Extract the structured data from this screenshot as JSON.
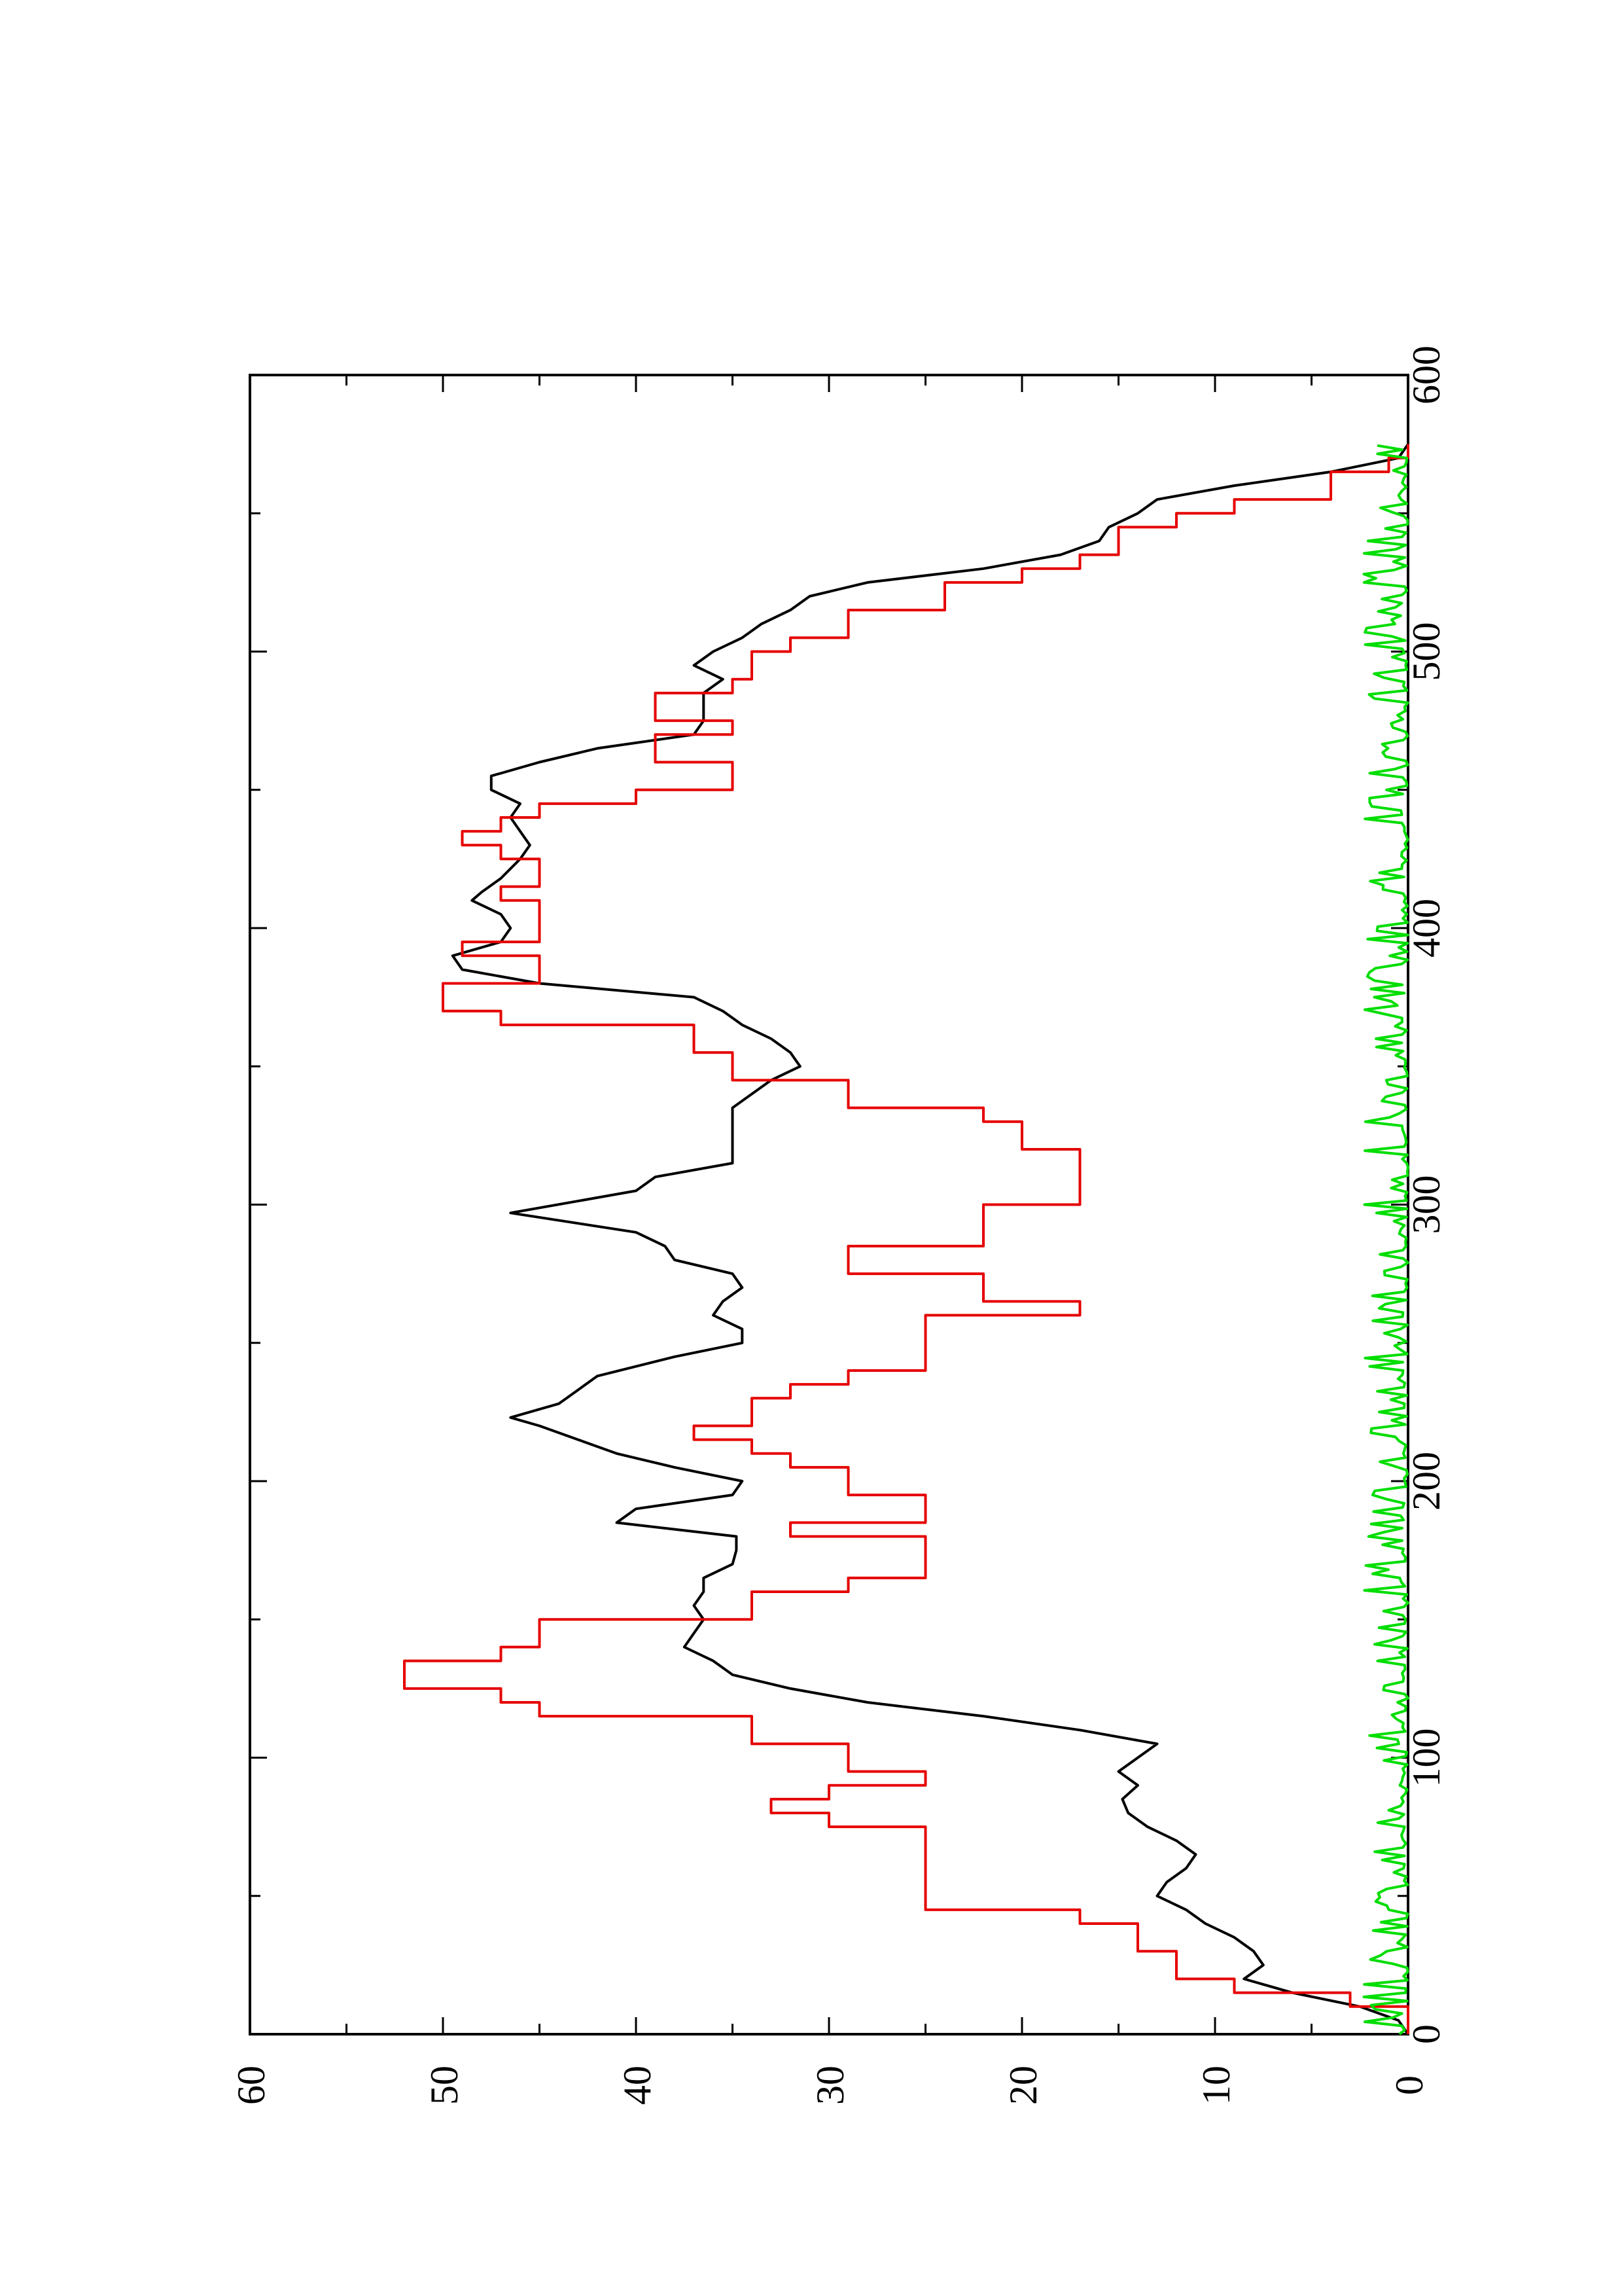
{
  "chart_data": {
    "type": "line",
    "orientation": "rotated-90-ccw",
    "title": "",
    "xlabel": "",
    "ylabel": "",
    "xlim": [
      0,
      600
    ],
    "ylim": [
      0,
      60
    ],
    "x_ticks": [
      "0",
      "100",
      "200",
      "300",
      "400",
      "500",
      "600"
    ],
    "y_ticks": [
      "0",
      "10",
      "20",
      "30",
      "40",
      "50",
      "60"
    ],
    "grid": false,
    "legend": "none",
    "series": [
      {
        "color": "#000000",
        "style": "line",
        "points": [
          [
            0,
            0
          ],
          [
            5,
            0.5
          ],
          [
            10,
            2.5
          ],
          [
            15,
            6
          ],
          [
            18,
            7.5
          ],
          [
            20,
            8.5
          ],
          [
            25,
            7.5
          ],
          [
            30,
            8
          ],
          [
            35,
            9
          ],
          [
            40,
            10.5
          ],
          [
            45,
            11.5
          ],
          [
            50,
            13
          ],
          [
            55,
            12.5
          ],
          [
            60,
            11.5
          ],
          [
            65,
            11
          ],
          [
            70,
            12
          ],
          [
            75,
            13.5
          ],
          [
            80,
            14.5
          ],
          [
            85,
            14.8
          ],
          [
            90,
            14
          ],
          [
            95,
            15
          ],
          [
            100,
            14
          ],
          [
            105,
            13
          ],
          [
            110,
            17
          ],
          [
            115,
            22
          ],
          [
            120,
            28
          ],
          [
            125,
            32
          ],
          [
            130,
            35
          ],
          [
            135,
            36
          ],
          [
            140,
            37.5
          ],
          [
            145,
            37
          ],
          [
            150,
            36.5
          ],
          [
            155,
            37
          ],
          [
            160,
            36.5
          ],
          [
            165,
            36.5
          ],
          [
            170,
            35
          ],
          [
            175,
            34.8
          ],
          [
            180,
            34.8
          ],
          [
            185,
            41
          ],
          [
            190,
            40
          ],
          [
            195,
            35
          ],
          [
            200,
            34.5
          ],
          [
            205,
            38
          ],
          [
            210,
            41
          ],
          [
            215,
            43
          ],
          [
            220,
            45
          ],
          [
            223,
            46.5
          ],
          [
            228,
            44
          ],
          [
            233,
            43
          ],
          [
            238,
            42
          ],
          [
            245,
            38
          ],
          [
            250,
            34.5
          ],
          [
            255,
            34.5
          ],
          [
            260,
            36
          ],
          [
            265,
            35.5
          ],
          [
            270,
            34.5
          ],
          [
            275,
            35
          ],
          [
            280,
            38
          ],
          [
            285,
            38.5
          ],
          [
            290,
            40
          ],
          [
            297,
            46.5
          ],
          [
            305,
            40
          ],
          [
            310,
            39
          ],
          [
            315,
            35
          ],
          [
            320,
            35
          ],
          [
            325,
            35
          ],
          [
            330,
            35
          ],
          [
            335,
            35
          ],
          [
            340,
            34
          ],
          [
            345,
            33
          ],
          [
            350,
            31.5
          ],
          [
            355,
            32
          ],
          [
            360,
            33
          ],
          [
            365,
            34.5
          ],
          [
            370,
            35.5
          ],
          [
            375,
            37
          ],
          [
            380,
            45
          ],
          [
            385,
            49
          ],
          [
            390,
            49.5
          ],
          [
            395,
            47
          ],
          [
            400,
            46.5
          ],
          [
            405,
            47
          ],
          [
            410,
            48.5
          ],
          [
            413,
            48
          ],
          [
            418,
            47
          ],
          [
            425,
            46
          ],
          [
            430,
            45.5
          ],
          [
            435,
            46
          ],
          [
            440,
            46.5
          ],
          [
            445,
            46
          ],
          [
            450,
            47.5
          ],
          [
            455,
            47.5
          ],
          [
            460,
            45
          ],
          [
            465,
            42
          ],
          [
            470,
            37
          ],
          [
            475,
            36.5
          ],
          [
            480,
            36.5
          ],
          [
            485,
            36.5
          ],
          [
            490,
            35.5
          ],
          [
            495,
            37
          ],
          [
            500,
            36
          ],
          [
            505,
            34.5
          ],
          [
            510,
            33.5
          ],
          [
            515,
            32
          ],
          [
            520,
            31
          ],
          [
            525,
            28
          ],
          [
            530,
            22
          ],
          [
            535,
            18
          ],
          [
            540,
            16
          ],
          [
            545,
            15.5
          ],
          [
            550,
            14
          ],
          [
            555,
            13
          ],
          [
            560,
            9
          ],
          [
            565,
            4
          ],
          [
            570,
            0.5
          ],
          [
            575,
            0
          ]
        ]
      },
      {
        "color": "#e60000",
        "style": "step",
        "points": [
          [
            0,
            0
          ],
          [
            10,
            0
          ],
          [
            10,
            3
          ],
          [
            15,
            3
          ],
          [
            15,
            9
          ],
          [
            20,
            9
          ],
          [
            20,
            12
          ],
          [
            30,
            12
          ],
          [
            30,
            14
          ],
          [
            40,
            14
          ],
          [
            40,
            17
          ],
          [
            45,
            17
          ],
          [
            45,
            25
          ],
          [
            75,
            25
          ],
          [
            75,
            30
          ],
          [
            80,
            30
          ],
          [
            80,
            33
          ],
          [
            85,
            33
          ],
          [
            85,
            30
          ],
          [
            90,
            30
          ],
          [
            90,
            25
          ],
          [
            95,
            25
          ],
          [
            95,
            29
          ],
          [
            105,
            29
          ],
          [
            105,
            34
          ],
          [
            115,
            34
          ],
          [
            115,
            45
          ],
          [
            120,
            45
          ],
          [
            120,
            47
          ],
          [
            125,
            47
          ],
          [
            125,
            52
          ],
          [
            135,
            52
          ],
          [
            135,
            47
          ],
          [
            140,
            47
          ],
          [
            140,
            45
          ],
          [
            150,
            45
          ],
          [
            150,
            34
          ],
          [
            160,
            34
          ],
          [
            160,
            29
          ],
          [
            165,
            29
          ],
          [
            165,
            25
          ],
          [
            180,
            25
          ],
          [
            180,
            32
          ],
          [
            185,
            32
          ],
          [
            185,
            25
          ],
          [
            195,
            25
          ],
          [
            195,
            29
          ],
          [
            205,
            29
          ],
          [
            205,
            32
          ],
          [
            210,
            32
          ],
          [
            210,
            34
          ],
          [
            215,
            34
          ],
          [
            215,
            37
          ],
          [
            220,
            37
          ],
          [
            220,
            34
          ],
          [
            230,
            34
          ],
          [
            230,
            32
          ],
          [
            235,
            32
          ],
          [
            235,
            29
          ],
          [
            240,
            29
          ],
          [
            240,
            25
          ],
          [
            260,
            25
          ],
          [
            260,
            17
          ],
          [
            265,
            17
          ],
          [
            265,
            22
          ],
          [
            275,
            22
          ],
          [
            275,
            29
          ],
          [
            285,
            29
          ],
          [
            285,
            22
          ],
          [
            300,
            22
          ],
          [
            300,
            17
          ],
          [
            320,
            17
          ],
          [
            320,
            20
          ],
          [
            330,
            20
          ],
          [
            330,
            22
          ],
          [
            335,
            22
          ],
          [
            335,
            29
          ],
          [
            345,
            29
          ],
          [
            345,
            35
          ],
          [
            355,
            35
          ],
          [
            355,
            37
          ],
          [
            365,
            37
          ],
          [
            365,
            47
          ],
          [
            370,
            47
          ],
          [
            370,
            50
          ],
          [
            380,
            50
          ],
          [
            380,
            45
          ],
          [
            390,
            45
          ],
          [
            390,
            49
          ],
          [
            395,
            49
          ],
          [
            395,
            45
          ],
          [
            410,
            45
          ],
          [
            410,
            47
          ],
          [
            415,
            47
          ],
          [
            415,
            45
          ],
          [
            425,
            45
          ],
          [
            425,
            47
          ],
          [
            430,
            47
          ],
          [
            430,
            49
          ],
          [
            435,
            49
          ],
          [
            435,
            47
          ],
          [
            440,
            47
          ],
          [
            440,
            45
          ],
          [
            445,
            45
          ],
          [
            445,
            40
          ],
          [
            450,
            40
          ],
          [
            450,
            35
          ],
          [
            460,
            35
          ],
          [
            460,
            39
          ],
          [
            470,
            39
          ],
          [
            470,
            35
          ],
          [
            475,
            35
          ],
          [
            475,
            39
          ],
          [
            485,
            39
          ],
          [
            485,
            35
          ],
          [
            490,
            35
          ],
          [
            490,
            34
          ],
          [
            500,
            34
          ],
          [
            500,
            32
          ],
          [
            505,
            32
          ],
          [
            505,
            29
          ],
          [
            515,
            29
          ],
          [
            515,
            24
          ],
          [
            525,
            24
          ],
          [
            525,
            20
          ],
          [
            530,
            20
          ],
          [
            530,
            17
          ],
          [
            535,
            17
          ],
          [
            535,
            15
          ],
          [
            545,
            15
          ],
          [
            545,
            12
          ],
          [
            550,
            12
          ],
          [
            550,
            9
          ],
          [
            555,
            9
          ],
          [
            555,
            4
          ],
          [
            565,
            4
          ],
          [
            565,
            1
          ],
          [
            570,
            1
          ],
          [
            570,
            0
          ],
          [
            575,
            0
          ]
        ]
      },
      {
        "color": "#00dd00",
        "style": "noise",
        "x_range": [
          0,
          575
        ],
        "amplitude_max": 2.3,
        "note_level": 0
      }
    ]
  }
}
